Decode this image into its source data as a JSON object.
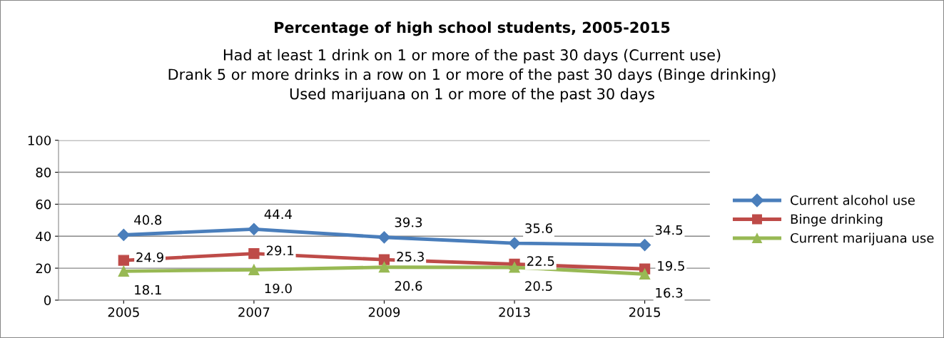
{
  "chart_data": {
    "type": "line",
    "title": "Percentage of high school students, 2005-2015",
    "subtitle": "Had at least 1 drink on 1 or more of the past 30 days (Current use)\nDrank 5 or more drinks in a row on 1 or more of the past 30 days (Binge drinking)\nUsed marijuana on 1 or more of the past 30 days",
    "categories": [
      "2005",
      "2007",
      "2009",
      "2013",
      "2015"
    ],
    "series": [
      {
        "name": "Current alcohol use",
        "color": "#4a7ebb",
        "marker": "diamond",
        "values": [
          40.8,
          44.4,
          39.3,
          35.6,
          34.5
        ],
        "value_labels": [
          "40.8",
          "44.4",
          "39.3",
          "35.6",
          "34.5"
        ]
      },
      {
        "name": "Binge drinking",
        "color": "#be4b48",
        "marker": "square",
        "values": [
          24.9,
          29.1,
          25.3,
          22.5,
          19.5
        ],
        "value_labels": [
          "24.9",
          "29.1",
          "25.3",
          "22.5",
          "19.5"
        ]
      },
      {
        "name": "Current marijuana use",
        "color": "#98b954",
        "marker": "triangle",
        "values": [
          18.1,
          19.0,
          20.6,
          20.5,
          16.3
        ],
        "value_labels": [
          "18.1",
          "19.0",
          "20.6",
          "20.5",
          "16.3"
        ]
      }
    ],
    "ylim": [
      0,
      100
    ],
    "yticks": [
      0,
      20,
      40,
      60,
      80,
      100
    ],
    "grid": "y",
    "legend": "right",
    "line_style": "solid"
  }
}
